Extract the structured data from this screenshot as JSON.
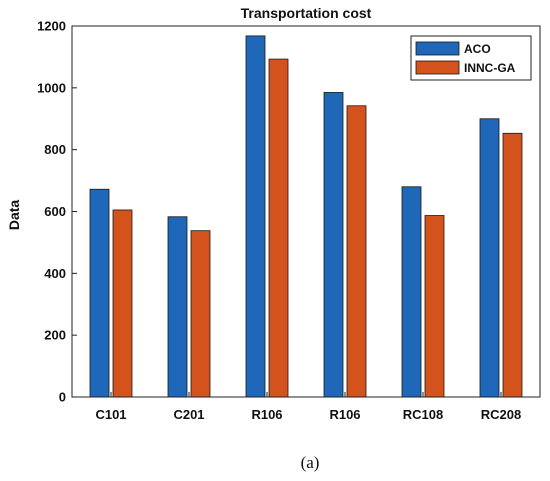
{
  "chart_data": {
    "type": "bar",
    "title": "Transportation cost",
    "ylabel": "Data",
    "xlabel": "",
    "categories": [
      "C101",
      "C201",
      "R106",
      "R106",
      "RC108",
      "RC208"
    ],
    "series": [
      {
        "name": "ACO",
        "values": [
          672,
          583,
          1168,
          985,
          680,
          900
        ],
        "color": "#1f67b8"
      },
      {
        "name": "INNC-GA",
        "values": [
          605,
          538,
          1093,
          942,
          587,
          853
        ],
        "color": "#d4531c"
      }
    ],
    "ylim": [
      0,
      1200
    ],
    "yticks": [
      "0",
      "200",
      "400",
      "600",
      "800",
      "1000",
      "1200"
    ],
    "grid": false,
    "legend_position": "top-right",
    "caption": "(a)"
  }
}
